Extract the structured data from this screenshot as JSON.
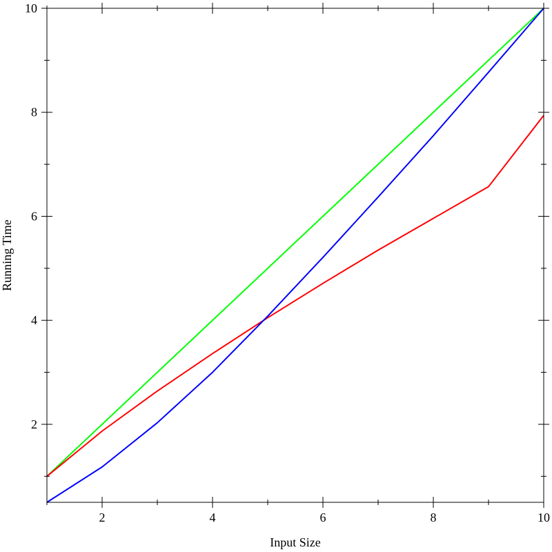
{
  "chart_data": {
    "type": "line",
    "xlabel": "Input Size",
    "ylabel": "Running Time",
    "xlim": [
      1,
      10
    ],
    "ylim": [
      0.5,
      10
    ],
    "x_major_ticks": [
      2,
      4,
      6,
      8,
      10
    ],
    "x_minor_ticks": [
      1,
      3,
      5,
      7,
      9
    ],
    "y_major_ticks": [
      2,
      4,
      6,
      8,
      10
    ],
    "y_minor_ticks": [
      1,
      3,
      5,
      7,
      9
    ],
    "x_tick_labels": [
      "2",
      "4",
      "6",
      "8",
      "10"
    ],
    "y_tick_labels": [
      "2",
      "4",
      "6",
      "8",
      "10"
    ],
    "grid": false,
    "legend": "none",
    "series": [
      {
        "color": "#00ff00",
        "x": [
          1,
          10
        ],
        "y": [
          1,
          10
        ]
      },
      {
        "color": "#ff0000",
        "x": [
          1,
          2,
          3,
          4,
          5,
          6,
          7,
          8,
          9,
          10
        ],
        "y": [
          1.0,
          1.87,
          2.64,
          3.36,
          4.05,
          4.71,
          5.35,
          5.96,
          6.57,
          7.94
        ]
      },
      {
        "color": "#0000ff",
        "x": [
          1,
          2,
          3,
          4,
          5,
          6,
          7,
          8,
          9,
          10
        ],
        "y": [
          0.5,
          1.18,
          2.03,
          3.0,
          4.08,
          5.21,
          6.37,
          7.55,
          8.77,
          10.0
        ]
      }
    ]
  }
}
